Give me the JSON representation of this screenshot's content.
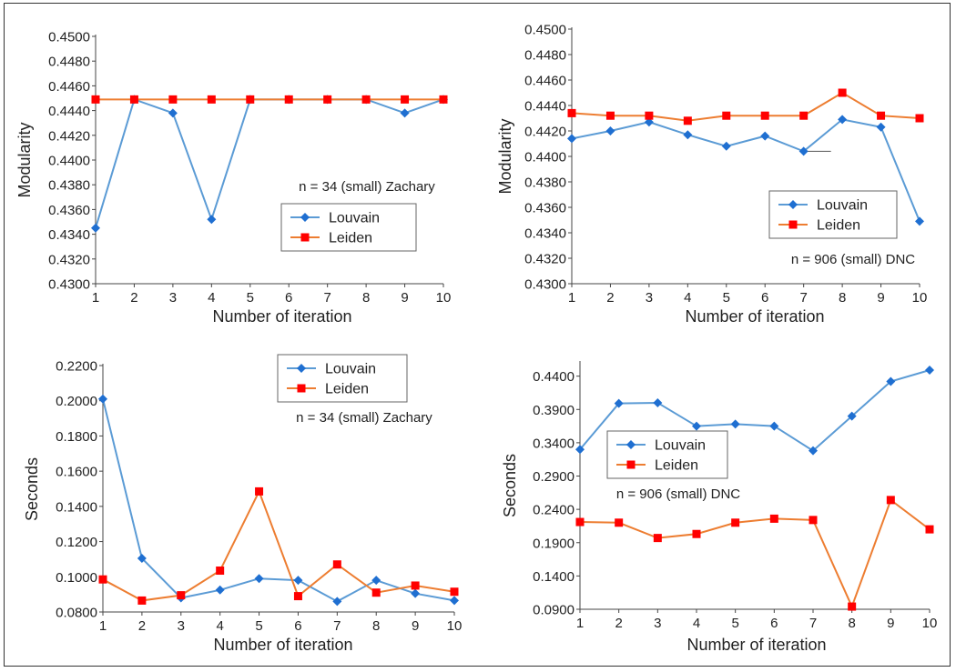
{
  "colors": {
    "louvain": "#5b9bd5",
    "leiden": "#ed7d31",
    "louvain_marker": "#1f6fd1",
    "leiden_marker": "#ff0000",
    "axis": "#444444"
  },
  "chart_data": [
    {
      "type": "line",
      "xlabel": "Number of iteration",
      "ylabel": "Modularity",
      "x": [
        1,
        2,
        3,
        4,
        5,
        6,
        7,
        8,
        9,
        10
      ],
      "yticks": [
        "0.4300",
        "0.4320",
        "0.4340",
        "0.4360",
        "0.4380",
        "0.4400",
        "0.4420",
        "0.4440",
        "0.4460",
        "0.4480",
        "0.4500"
      ],
      "ylim": [
        0.43,
        0.45
      ],
      "annotation": "n = 34 (small) Zachary",
      "legend": [
        "Louvain",
        "Leiden"
      ],
      "series": [
        {
          "name": "Louvain",
          "values": [
            0.4345,
            0.4449,
            0.4438,
            0.4352,
            0.4449,
            0.4449,
            0.4449,
            0.4449,
            0.4438,
            0.4449
          ]
        },
        {
          "name": "Leiden",
          "values": [
            0.4449,
            0.4449,
            0.4449,
            0.4449,
            0.4449,
            0.4449,
            0.4449,
            0.4449,
            0.4449,
            0.4449
          ]
        }
      ]
    },
    {
      "type": "line",
      "xlabel": "Number of iteration",
      "ylabel": "Modularity",
      "x": [
        1,
        2,
        3,
        4,
        5,
        6,
        7,
        8,
        9,
        10
      ],
      "yticks": [
        "0.4300",
        "0.4320",
        "0.4340",
        "0.4360",
        "0.4380",
        "0.4400",
        "0.4420",
        "0.4440",
        "0.4460",
        "0.4480",
        "0.4500"
      ],
      "ylim": [
        0.43,
        0.45
      ],
      "annotation": "n = 906 (small) DNC",
      "legend": [
        "Louvain",
        "Leiden"
      ],
      "series": [
        {
          "name": "Louvain",
          "values": [
            0.4414,
            0.442,
            0.4427,
            0.4417,
            0.4408,
            0.4416,
            0.4404,
            0.4429,
            0.4423,
            0.4349
          ]
        },
        {
          "name": "Leiden",
          "values": [
            0.4434,
            0.4432,
            0.4432,
            0.4428,
            0.4432,
            0.4432,
            0.4432,
            0.445,
            0.4432,
            0.443
          ]
        }
      ]
    },
    {
      "type": "line",
      "xlabel": "Number of iteration",
      "ylabel": "Seconds",
      "x": [
        1,
        2,
        3,
        4,
        5,
        6,
        7,
        8,
        9,
        10
      ],
      "yticks": [
        "0.0800",
        "0.1000",
        "0.1200",
        "0.1400",
        "0.1600",
        "0.1800",
        "0.2000",
        "0.2200"
      ],
      "ylim": [
        0.08,
        0.22
      ],
      "annotation": "n = 34 (small) Zachary",
      "legend": [
        "Louvain",
        "Leiden"
      ],
      "series": [
        {
          "name": "Louvain",
          "values": [
            0.201,
            0.1105,
            0.088,
            0.0925,
            0.099,
            0.098,
            0.086,
            0.098,
            0.0905,
            0.0865
          ]
        },
        {
          "name": "Leiden",
          "values": [
            0.0985,
            0.0865,
            0.0895,
            0.1035,
            0.1485,
            0.089,
            0.107,
            0.091,
            0.095,
            0.0915
          ]
        }
      ]
    },
    {
      "type": "line",
      "xlabel": "Number of iteration",
      "ylabel": "Seconds",
      "x": [
        1,
        2,
        3,
        4,
        5,
        6,
        7,
        8,
        9,
        10
      ],
      "yticks": [
        "0.0900",
        "0.1400",
        "0.1900",
        "0.2400",
        "0.2900",
        "0.3400",
        "0.3900",
        "0.4400"
      ],
      "ylim": [
        0.09,
        0.46
      ],
      "annotation": "n = 906 (small) DNC",
      "legend": [
        "Louvain",
        "Leiden"
      ],
      "series": [
        {
          "name": "Louvain",
          "values": [
            0.33,
            0.399,
            0.4,
            0.365,
            0.368,
            0.365,
            0.328,
            0.38,
            0.432,
            0.449
          ]
        },
        {
          "name": "Leiden",
          "values": [
            0.221,
            0.22,
            0.197,
            0.203,
            0.22,
            0.226,
            0.224,
            0.094,
            0.254,
            0.21
          ]
        }
      ]
    }
  ]
}
